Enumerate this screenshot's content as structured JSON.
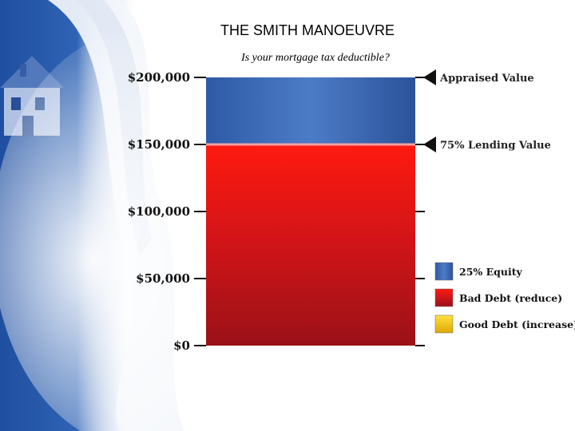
{
  "header": {
    "title": "THE SMITH MANOEUVRE",
    "subtitle": "Is your mortgage tax deductible?"
  },
  "colors": {
    "equity": "#3a66b0",
    "bad_debt": "#d4141c",
    "good_debt": "#f2c500",
    "background_blue": "#1f4fa0"
  },
  "chart_data": {
    "type": "bar",
    "stacked": true,
    "categories": [
      ""
    ],
    "series": [
      {
        "name": "Bad Debt (reduce)",
        "values": [
          150000
        ]
      },
      {
        "name": "25% Equity",
        "values": [
          50000
        ]
      },
      {
        "name": "Good Debt (increase)",
        "values": [
          0
        ]
      }
    ],
    "ylim": [
      0,
      200000
    ],
    "yticks": [
      0,
      50000,
      100000,
      150000,
      200000
    ],
    "ytick_labels": [
      "$0",
      "$50,000",
      "$100,000",
      "$150,000",
      "$200,000"
    ],
    "annotations": [
      {
        "label": "Appraised Value",
        "value": 200000
      },
      {
        "label": "75%  Lending Value",
        "value": 150000
      }
    ],
    "legend": [
      {
        "label": "25% Equity",
        "color_key": "equity"
      },
      {
        "label": "Bad Debt (reduce)",
        "color_key": "bad_debt"
      },
      {
        "label": "Good Debt (increase)",
        "color_key": "good_debt"
      }
    ],
    "legend_position": "right",
    "grid": false
  }
}
